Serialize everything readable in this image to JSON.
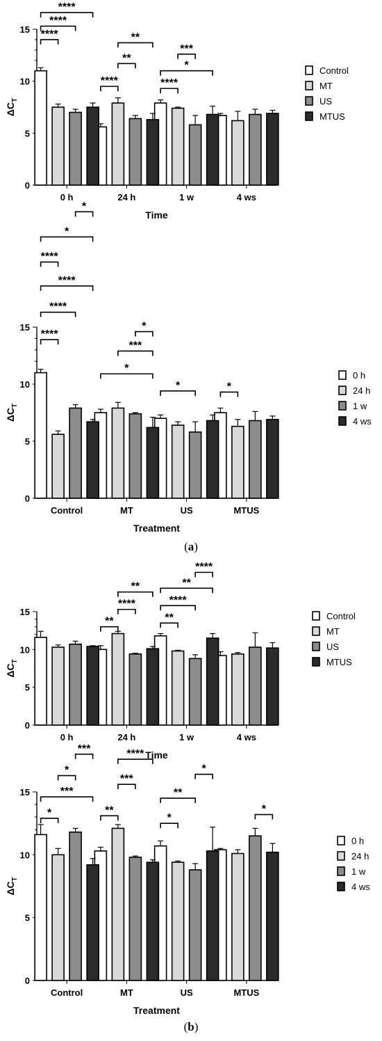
{
  "figure": {
    "panel_a_label": "a",
    "panel_b_label": "b",
    "colors": {
      "Control": "#ffffff",
      "MT": "#d9d9d9",
      "US": "#8c8c8c",
      "MTUS": "#2b2b2b",
      "axis": "#000000"
    }
  },
  "chart_data": [
    {
      "type": "bar",
      "ylabel": "ΔC",
      "ylabel_sub": "T",
      "xlabel": "Time",
      "ylim": [
        0,
        15
      ],
      "yticks": [
        "0",
        "5",
        "10",
        "15"
      ],
      "categories": [
        "0 h",
        "24 h",
        "1 w",
        "4 ws"
      ],
      "legend_placement": "right",
      "series": [
        {
          "name": "Control",
          "values": [
            11.0,
            5.6,
            7.9,
            6.7
          ],
          "errors": [
            0.3,
            0.3,
            0.3,
            0.2
          ]
        },
        {
          "name": "MT",
          "values": [
            7.5,
            7.9,
            7.4,
            6.2
          ],
          "errors": [
            0.3,
            0.5,
            0.1,
            0.9
          ]
        },
        {
          "name": "US",
          "values": [
            7.0,
            6.4,
            5.8,
            6.8
          ],
          "errors": [
            0.3,
            0.3,
            0.9,
            0.5
          ]
        },
        {
          "name": "MTUS",
          "values": [
            7.5,
            6.3,
            6.8,
            6.9
          ],
          "errors": [
            0.4,
            0.6,
            0.8,
            0.3
          ]
        }
      ],
      "significance": [
        {
          "category": 0,
          "from": 0,
          "to": 1,
          "level": 14.0,
          "label": "****"
        },
        {
          "category": 0,
          "from": 0,
          "to": 2,
          "level": 15.3,
          "label": "****"
        },
        {
          "category": 0,
          "from": 0,
          "to": 3,
          "level": 16.6,
          "label": "****"
        },
        {
          "category": 1,
          "from": 0,
          "to": 1,
          "level": 9.5,
          "label": "****"
        },
        {
          "category": 1,
          "from": 1,
          "to": 2,
          "level": 11.7,
          "label": "**"
        },
        {
          "category": 1,
          "from": 1,
          "to": 3,
          "level": 13.7,
          "label": "**"
        },
        {
          "category": 2,
          "from": 0,
          "to": 1,
          "level": 9.3,
          "label": "****"
        },
        {
          "category": 2,
          "from": 0,
          "to": 3,
          "level": 11.0,
          "label": "*"
        },
        {
          "category": 2,
          "from": 1,
          "to": 2,
          "level": 12.6,
          "label": "***"
        }
      ]
    },
    {
      "type": "bar",
      "ylabel": "ΔC",
      "ylabel_sub": "T",
      "xlabel": "Treatment",
      "ylim": [
        0,
        15
      ],
      "yticks": [
        "0",
        "5",
        "10",
        "15"
      ],
      "categories": [
        "Control",
        "MT",
        "US",
        "MTUS"
      ],
      "legend_placement": "right",
      "series": [
        {
          "name": "0 h",
          "values": [
            11.0,
            7.5,
            7.0,
            7.5
          ],
          "errors": [
            0.3,
            0.3,
            0.3,
            0.4
          ]
        },
        {
          "name": "24 h",
          "values": [
            5.6,
            7.9,
            6.4,
            6.3
          ],
          "errors": [
            0.3,
            0.5,
            0.3,
            0.6
          ]
        },
        {
          "name": "1 w",
          "values": [
            7.9,
            7.4,
            5.8,
            6.8
          ],
          "errors": [
            0.3,
            0.1,
            0.9,
            0.8
          ]
        },
        {
          "name": "4 ws",
          "values": [
            6.7,
            6.2,
            6.8,
            6.9
          ],
          "errors": [
            0.2,
            0.9,
            0.5,
            0.3
          ]
        }
      ],
      "significance": [
        {
          "category": 0,
          "from": 0,
          "to": 1,
          "level": 13.9,
          "label": "****"
        },
        {
          "category": 0,
          "from": 0,
          "to": 2,
          "level": 16.3,
          "label": "****"
        },
        {
          "category": 0,
          "from": 0,
          "to": 3,
          "level": 18.6,
          "label": "****"
        },
        {
          "category": 0,
          "from": 0,
          "to": 1,
          "level": 20.7,
          "label": "****"
        },
        {
          "category": 0,
          "from": 0,
          "to": 3,
          "level": 22.9,
          "label": "*"
        },
        {
          "category": 0,
          "from": 2,
          "to": 3,
          "level": 25.1,
          "label": "*"
        },
        {
          "category": 1,
          "from": 0,
          "to": 3,
          "level": 10.9,
          "label": "*"
        },
        {
          "category": 1,
          "from": 1,
          "to": 3,
          "level": 12.9,
          "label": "***"
        },
        {
          "category": 1,
          "from": 2,
          "to": 3,
          "level": 14.6,
          "label": "*"
        },
        {
          "category": 2,
          "from": 0,
          "to": 2,
          "level": 9.4,
          "label": "*"
        },
        {
          "category": 3,
          "from": 0,
          "to": 1,
          "level": 9.3,
          "label": "*"
        }
      ]
    },
    {
      "type": "bar",
      "ylabel": "ΔC",
      "ylabel_sub": "T",
      "xlabel": "Time",
      "ylim": [
        0,
        15
      ],
      "yticks": [
        "0",
        "5",
        "10",
        "15"
      ],
      "categories": [
        "0 h",
        "24 h",
        "1 w",
        "4 ws"
      ],
      "legend_placement": "right",
      "series": [
        {
          "name": "Control",
          "values": [
            11.6,
            10.0,
            11.8,
            9.2
          ],
          "errors": [
            0.8,
            0.5,
            0.3,
            0.5
          ]
        },
        {
          "name": "MT",
          "values": [
            10.3,
            12.1,
            9.8,
            9.4
          ],
          "errors": [
            0.3,
            0.3,
            0.1,
            0.2
          ]
        },
        {
          "name": "US",
          "values": [
            10.7,
            9.4,
            8.8,
            10.3
          ],
          "errors": [
            0.4,
            0.1,
            0.5,
            1.9
          ]
        },
        {
          "name": "MTUS",
          "values": [
            10.4,
            10.1,
            11.5,
            10.2
          ],
          "errors": [
            0.1,
            0.3,
            0.6,
            0.7
          ]
        }
      ],
      "significance": [
        {
          "category": 1,
          "from": 0,
          "to": 1,
          "level": 13.0,
          "label": "**"
        },
        {
          "category": 1,
          "from": 1,
          "to": 2,
          "level": 15.3,
          "label": "****"
        },
        {
          "category": 1,
          "from": 1,
          "to": 3,
          "level": 17.6,
          "label": "**"
        },
        {
          "category": 2,
          "from": 0,
          "to": 1,
          "level": 13.5,
          "label": "**"
        },
        {
          "category": 2,
          "from": 0,
          "to": 2,
          "level": 15.8,
          "label": "****"
        },
        {
          "category": 2,
          "from": 0,
          "to": 3,
          "level": 18.1,
          "label": "**"
        },
        {
          "category": 2,
          "from": 2,
          "to": 3,
          "level": 20.2,
          "label": "****"
        }
      ]
    },
    {
      "type": "bar",
      "ylabel": "ΔC",
      "ylabel_sub": "T",
      "xlabel": "Treatment",
      "ylim": [
        0,
        15
      ],
      "yticks": [
        "0",
        "5",
        "10",
        "15"
      ],
      "categories": [
        "Control",
        "MT",
        "US",
        "MTUS"
      ],
      "legend_placement": "right",
      "series": [
        {
          "name": "0 h",
          "values": [
            11.6,
            10.3,
            10.7,
            10.4
          ],
          "errors": [
            0.8,
            0.3,
            0.4,
            0.1
          ]
        },
        {
          "name": "24 h",
          "values": [
            10.0,
            12.1,
            9.4,
            10.1
          ],
          "errors": [
            0.5,
            0.3,
            0.1,
            0.3
          ]
        },
        {
          "name": "1 w",
          "values": [
            11.8,
            9.8,
            8.8,
            11.5
          ],
          "errors": [
            0.3,
            0.1,
            0.5,
            0.6
          ]
        },
        {
          "name": "4 ws",
          "values": [
            9.2,
            9.4,
            10.3,
            10.2
          ],
          "errors": [
            0.5,
            0.2,
            1.9,
            0.7
          ]
        }
      ],
      "significance": [
        {
          "category": 0,
          "from": 0,
          "to": 1,
          "level": 12.9,
          "label": "*"
        },
        {
          "category": 0,
          "from": 0,
          "to": 3,
          "level": 14.6,
          "label": "***"
        },
        {
          "category": 0,
          "from": 1,
          "to": 2,
          "level": 16.3,
          "label": "*"
        },
        {
          "category": 0,
          "from": 2,
          "to": 3,
          "level": 18.0,
          "label": "***"
        },
        {
          "category": 1,
          "from": 0,
          "to": 1,
          "level": 13.1,
          "label": "**"
        },
        {
          "category": 1,
          "from": 1,
          "to": 2,
          "level": 15.6,
          "label": "***"
        },
        {
          "category": 1,
          "from": 1,
          "to": 3,
          "level": 17.6,
          "label": "****"
        },
        {
          "category": 2,
          "from": 0,
          "to": 1,
          "level": 12.5,
          "label": "*"
        },
        {
          "category": 2,
          "from": 0,
          "to": 2,
          "level": 14.5,
          "label": "**"
        },
        {
          "category": 2,
          "from": 2,
          "to": 3,
          "level": 16.4,
          "label": "*"
        },
        {
          "category": 3,
          "from": 2,
          "to": 3,
          "level": 13.2,
          "label": "*"
        }
      ]
    }
  ]
}
